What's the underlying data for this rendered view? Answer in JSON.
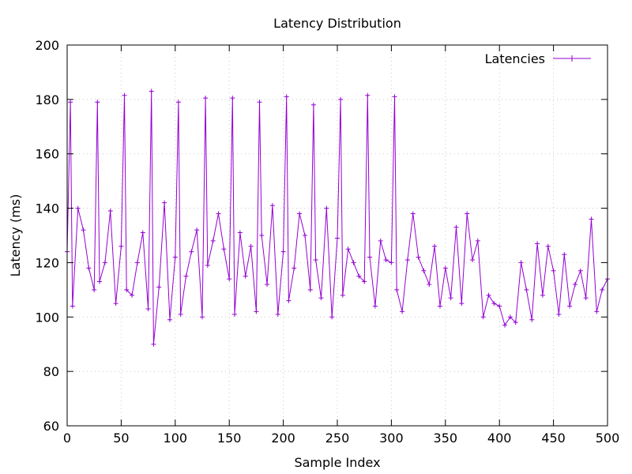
{
  "chart_data": {
    "type": "line",
    "title": "Latency Distribution",
    "xlabel": "Sample Index",
    "ylabel": "Latency (ms)",
    "xlim": [
      0,
      500
    ],
    "ylim": [
      60,
      200
    ],
    "xticks": [
      0,
      50,
      100,
      150,
      200,
      250,
      300,
      350,
      400,
      450,
      500
    ],
    "yticks": [
      60,
      80,
      100,
      120,
      140,
      160,
      180,
      200
    ],
    "grid": true,
    "legend": "top-right",
    "marker": "plus",
    "series": [
      {
        "name": "Latencies",
        "color": "#9400d3",
        "x": [
          0,
          5,
          10,
          15,
          20,
          25,
          30,
          35,
          40,
          45,
          50,
          55,
          60,
          65,
          70,
          75,
          80,
          85,
          90,
          95,
          100,
          105,
          110,
          115,
          120,
          125,
          130,
          135,
          140,
          145,
          150,
          155,
          160,
          165,
          170,
          175,
          180,
          185,
          190,
          195,
          200,
          205,
          210,
          215,
          220,
          225,
          230,
          235,
          240,
          245,
          250,
          255,
          260,
          265,
          270,
          275,
          280,
          285,
          290,
          295,
          300,
          305,
          310,
          315,
          320,
          325,
          330,
          335,
          340,
          345,
          350,
          355,
          360,
          365,
          370,
          375,
          380,
          385,
          390,
          395,
          400,
          405,
          410,
          415,
          420,
          425,
          430,
          435,
          440,
          445,
          450,
          455,
          460,
          465,
          470,
          475,
          480,
          485,
          490,
          495,
          500
        ],
        "y": [
          124,
          104,
          140,
          132,
          118,
          110,
          113,
          120,
          139,
          105,
          126,
          110,
          108,
          120,
          131,
          103,
          90,
          111,
          142,
          99,
          122,
          101,
          115,
          124,
          132,
          100,
          119,
          128,
          138,
          125,
          114,
          101,
          131,
          115,
          126,
          102,
          130,
          112,
          141,
          101,
          124,
          106,
          118,
          138,
          130,
          110,
          121,
          107,
          140,
          100,
          129,
          108,
          125,
          120,
          115,
          113,
          122,
          104,
          128,
          121,
          120,
          110,
          102,
          121,
          138,
          122,
          117,
          112,
          126,
          104,
          118,
          107,
          133,
          105,
          138,
          121,
          128,
          100,
          108,
          105,
          104,
          97,
          100,
          98,
          120,
          110,
          99,
          127,
          108,
          126,
          117,
          101,
          123,
          104,
          112,
          117,
          107,
          136,
          102,
          110,
          114
        ],
        "spikes": [
          {
            "x": 3,
            "y": 179
          },
          {
            "x": 28,
            "y": 179
          },
          {
            "x": 53,
            "y": 181.5
          },
          {
            "x": 78,
            "y": 183
          },
          {
            "x": 103,
            "y": 179
          },
          {
            "x": 128,
            "y": 180.5
          },
          {
            "x": 153,
            "y": 180.5
          },
          {
            "x": 178,
            "y": 179
          },
          {
            "x": 203,
            "y": 181
          },
          {
            "x": 228,
            "y": 178
          },
          {
            "x": 253,
            "y": 180
          },
          {
            "x": 278,
            "y": 181.5
          },
          {
            "x": 303,
            "y": 181
          }
        ]
      }
    ]
  }
}
